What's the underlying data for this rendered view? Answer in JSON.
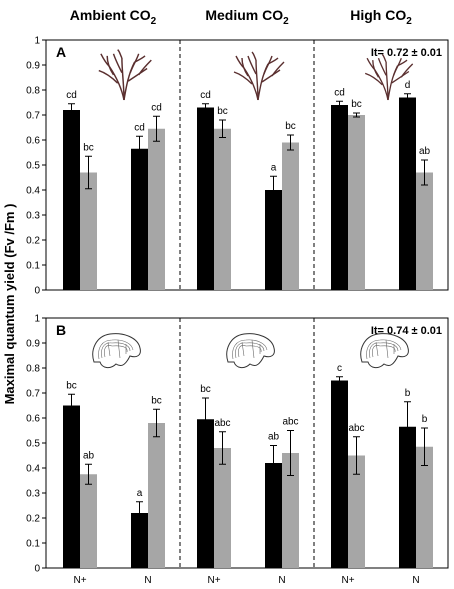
{
  "chart_data": [
    {
      "type": "bar",
      "panel_label": "A",
      "annotation": "It= 0.72 ± 0.01",
      "ylabel": "Maximal quantum yield (Fv /Fm )",
      "ylim": [
        0,
        1
      ],
      "yticks": [
        "0",
        "0.1",
        "0.2",
        "0.3",
        "0.4",
        "0.5",
        "0.6",
        "0.7",
        "0.8",
        "0.9",
        "1"
      ],
      "groups": [
        {
          "title": "Ambient CO2",
          "title_main": "Ambient CO",
          "title_sub": "2"
        },
        {
          "title": "Medium CO2",
          "title_main": "Medium CO",
          "title_sub": "2"
        },
        {
          "title": "High CO2",
          "title_main": "High CO",
          "title_sub": "2"
        }
      ],
      "categories": [
        "N+",
        "N",
        "N+",
        "N",
        "N+",
        "N"
      ],
      "series": [
        {
          "color": "#000000",
          "values": [
            0.72,
            0.565,
            0.73,
            0.4,
            0.74,
            0.77
          ],
          "errors": [
            0.025,
            0.05,
            0.015,
            0.055,
            0.015,
            0.015
          ],
          "letters": [
            "cd",
            "cd",
            "cd",
            "a",
            "cd",
            "d"
          ]
        },
        {
          "color": "#a6a6a6",
          "values": [
            0.47,
            0.645,
            0.645,
            0.59,
            0.7,
            0.47
          ],
          "errors": [
            0.065,
            0.05,
            0.035,
            0.03,
            0.008,
            0.05
          ],
          "letters": [
            "bc",
            "cd",
            "bc",
            "bc",
            "bc",
            "ab"
          ]
        }
      ],
      "illustration": "branched-seaweed"
    },
    {
      "type": "bar",
      "panel_label": "B",
      "annotation": "It= 0.74 ± 0.01",
      "ylim": [
        0,
        1
      ],
      "yticks": [
        "0",
        "0.1",
        "0.2",
        "0.3",
        "0.4",
        "0.5",
        "0.6",
        "0.7",
        "0.8",
        "0.9",
        "1"
      ],
      "categories": [
        "N+",
        "N",
        "N+",
        "N",
        "N+",
        "N"
      ],
      "series": [
        {
          "color": "#000000",
          "values": [
            0.65,
            0.22,
            0.595,
            0.42,
            0.75,
            0.565
          ],
          "errors": [
            0.045,
            0.045,
            0.085,
            0.07,
            0.015,
            0.1
          ],
          "letters": [
            "bc",
            "a",
            "bc",
            "ab",
            "c",
            "b"
          ]
        },
        {
          "color": "#a6a6a6",
          "values": [
            0.375,
            0.58,
            0.48,
            0.46,
            0.45,
            0.485
          ],
          "errors": [
            0.04,
            0.055,
            0.065,
            0.09,
            0.075,
            0.075
          ],
          "letters": [
            "ab",
            "bc",
            "abc",
            "abc",
            "abc",
            "b"
          ]
        }
      ],
      "illustration": "crustose-coralline-alga"
    }
  ]
}
